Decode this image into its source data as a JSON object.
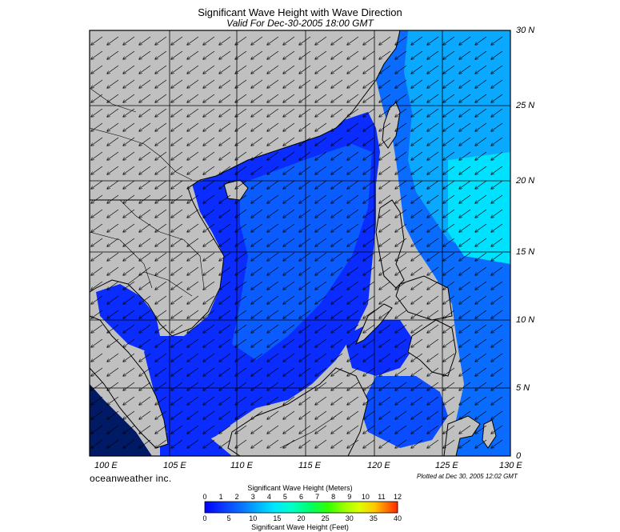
{
  "header": {
    "title": "Significant Wave Height with Wave Direction",
    "subtitle": "Valid For Dec-30-2005 18:00 GMT"
  },
  "axes": {
    "latitudes": [
      "30 N",
      "25 N",
      "20 N",
      "15 N",
      "10 N",
      "5 N",
      "0"
    ],
    "longitudes": [
      "100 E",
      "105 E",
      "110 E",
      "115 E",
      "120 E",
      "125 E",
      "130 E"
    ]
  },
  "footer": {
    "brand": "oceanweather inc.",
    "plotted": "Plotted at Dec 30, 2005 12:02 GMT"
  },
  "colorbar": {
    "top_caption": "Significant Wave Height (Meters)",
    "bottom_caption": "Significant Wave Height (Feet)",
    "meters_ticks": [
      "0",
      "1",
      "2",
      "3",
      "4",
      "5",
      "6",
      "7",
      "8",
      "9",
      "10",
      "11",
      "12"
    ],
    "feet_ticks": [
      "0",
      "5",
      "10",
      "15",
      "20",
      "25",
      "30",
      "35",
      "40"
    ],
    "colors": [
      "#0000ff",
      "#0a3cff",
      "#0a78ff",
      "#00b4ff",
      "#00e6ff",
      "#00ffc8",
      "#00ff64",
      "#32ff00",
      "#96ff00",
      "#dcff00",
      "#ffc800",
      "#ff7800",
      "#ff2800"
    ]
  },
  "map_colors": {
    "land": "#c0c0c0",
    "wave_low": "#0a2cff",
    "wave_mid": "#0a6cff",
    "wave_high": "#0aa8ff",
    "wave_peak": "#00e0ff"
  }
}
